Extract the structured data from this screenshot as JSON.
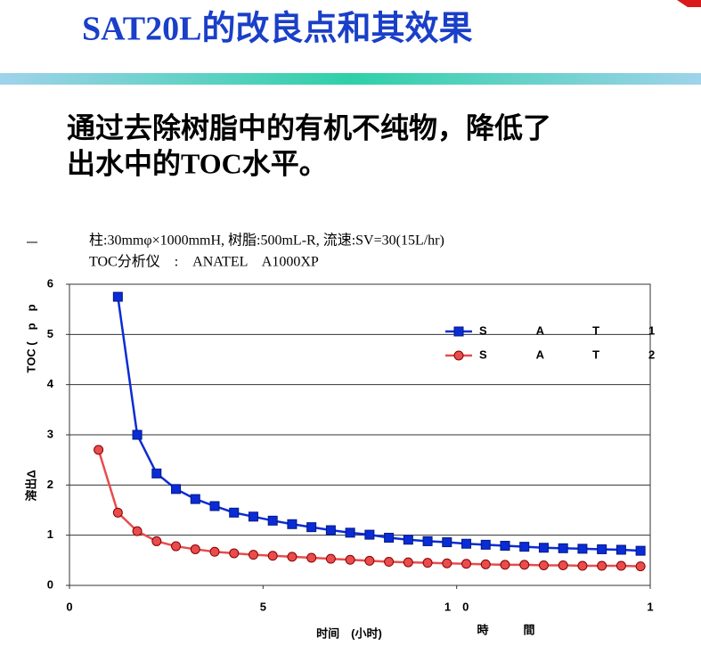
{
  "header": {
    "title": "SAT20L的改良点和其效果"
  },
  "body": {
    "lines": [
      "通过去除树脂中的有机不纯物，降低了",
      "出水中的TOC水平。"
    ]
  },
  "chart_data": {
    "type": "line",
    "notes": [
      "柱:30mmφ×1000mmH, 树脂:500mL-R, 流速:SV=30(15L/hr)",
      "TOC分析仪　:　ANATEL　A1000XP"
    ],
    "y_label": "TOC (　p　p",
    "y_label2": "溶出Δ",
    "x_label": "时间　(小时)",
    "x_label2": "時　　　間",
    "xlim": [
      0,
      15
    ],
    "xticks": [
      0,
      5,
      {
        "value": 10,
        "label": "1　0"
      },
      {
        "value": 15,
        "label": "1"
      }
    ],
    "ylim": [
      0,
      6
    ],
    "yticks": [
      0,
      1,
      2,
      3,
      4,
      5,
      6
    ],
    "grid": true,
    "legend": "top-right",
    "series": [
      {
        "name": "SAT1",
        "color": "#0a2bd6",
        "marker": "square",
        "x": [
          1.25,
          1.75,
          2.25,
          2.75,
          3.25,
          3.75,
          4.25,
          4.75,
          5.25,
          5.75,
          6.25,
          6.75,
          7.25,
          7.75,
          8.25,
          8.75,
          9.25,
          9.75,
          10.25,
          10.75,
          11.25,
          11.75,
          12.25,
          12.75,
          13.25,
          13.75,
          14.25,
          14.75
        ],
        "values": [
          5.75,
          3.0,
          2.23,
          1.92,
          1.72,
          1.58,
          1.45,
          1.37,
          1.29,
          1.22,
          1.16,
          1.1,
          1.05,
          1.01,
          0.95,
          0.91,
          0.88,
          0.86,
          0.83,
          0.81,
          0.79,
          0.77,
          0.75,
          0.74,
          0.73,
          0.72,
          0.71,
          0.69
        ]
      },
      {
        "name": "SAT2",
        "color": "#e84c4c",
        "marker": "circle",
        "x": [
          0.75,
          1.25,
          1.75,
          2.25,
          2.75,
          3.25,
          3.75,
          4.25,
          4.75,
          5.25,
          5.75,
          6.25,
          6.75,
          7.25,
          7.75,
          8.25,
          8.75,
          9.25,
          9.75,
          10.25,
          10.75,
          11.25,
          11.75,
          12.25,
          12.75,
          13.25,
          13.75,
          14.25,
          14.75
        ],
        "values": [
          2.7,
          1.45,
          1.08,
          0.88,
          0.78,
          0.72,
          0.67,
          0.64,
          0.61,
          0.59,
          0.57,
          0.55,
          0.53,
          0.51,
          0.49,
          0.47,
          0.46,
          0.45,
          0.44,
          0.43,
          0.42,
          0.41,
          0.41,
          0.4,
          0.4,
          0.39,
          0.39,
          0.39,
          0.38
        ]
      }
    ]
  }
}
